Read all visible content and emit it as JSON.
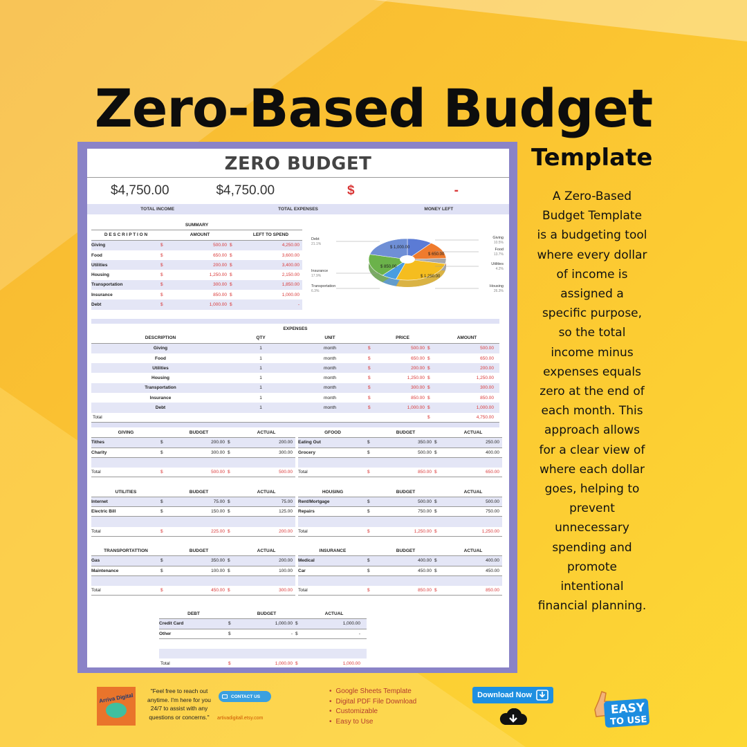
{
  "header": {
    "title": "Zero-Based Budget",
    "subtitle": "Template"
  },
  "description": "A Zero-Based Budget Template is a budgeting tool where every dollar of income is assigned a specific purpose, so the total income minus expenses equals zero at the end of each month. This approach allows for a clear view of where each dollar goes, helping to prevent unnecessary spending and promote intentional financial planning.",
  "sheet": {
    "title": "ZERO BUDGET",
    "total_income": "$4,750.00",
    "total_expenses": "$4,750.00",
    "money_left_symbol": "$",
    "money_left_value": "-",
    "label_income": "TOTAL INCOME",
    "label_expenses": "TOTAL EXPENSES",
    "label_money_left": "MONEY LEFT",
    "summary": {
      "title": "SUMMARY",
      "headers": [
        "D E S C R I P T I O N",
        "AMOUNT",
        "LEFT TO SPEND"
      ],
      "rows": [
        [
          "Giving",
          "500.00",
          "4,250.00"
        ],
        [
          "Food",
          "650.00",
          "3,600.00"
        ],
        [
          "Utilities",
          "200.00",
          "3,400.00"
        ],
        [
          "Housing",
          "1,250.00",
          "2,150.00"
        ],
        [
          "Transportation",
          "300.00",
          "1,850.00"
        ],
        [
          "Insurance",
          "850.00",
          "1,000.00"
        ],
        [
          "Debt",
          "1,000.00",
          "-"
        ]
      ]
    },
    "pie": {
      "slices": [
        {
          "label": "Giving",
          "pct": "10.5%",
          "value": 500,
          "color": "#5b7bd5"
        },
        {
          "label": "Food",
          "pct": "13.7%",
          "value": 650,
          "color": "#ef7b2d"
        },
        {
          "label": "Utilities",
          "pct": "4.2%",
          "value": 200,
          "color": "#a9a9a9"
        },
        {
          "label": "Housing",
          "pct": "26.3%",
          "value": 1250,
          "color": "#f5bd1f"
        },
        {
          "label": "Transportation",
          "pct": "6.3%",
          "value": 300,
          "color": "#4a9de0"
        },
        {
          "label": "Insurance",
          "pct": "17.9%",
          "value": 850,
          "color": "#6bb24a"
        },
        {
          "label": "Debt",
          "pct": "21.1%",
          "value": 1000,
          "color": "#6f8fd6"
        }
      ],
      "inner_labels": [
        "$ 1,000.00",
        "$ 650.00",
        "$ 850.00",
        "$ 1,250.00"
      ]
    },
    "expenses": {
      "title": "EXPENSES",
      "headers": [
        "DESCRIPTION",
        "QTY",
        "UNIT",
        "PRICE",
        "AMOUNT"
      ],
      "rows": [
        [
          "Giving",
          "1",
          "month",
          "500.00",
          "500.00"
        ],
        [
          "Food",
          "1",
          "month",
          "650.00",
          "650.00"
        ],
        [
          "Utilities",
          "1",
          "month",
          "200.00",
          "200.00"
        ],
        [
          "Housing",
          "1",
          "month",
          "1,250.00",
          "1,250.00"
        ],
        [
          "Transportation",
          "1",
          "month",
          "300.00",
          "300.00"
        ],
        [
          "Insurance",
          "1",
          "month",
          "850.00",
          "850.00"
        ],
        [
          "Debt",
          "1",
          "month",
          "1,000.00",
          "1,000.00"
        ]
      ],
      "total_label": "Total",
      "total_value": "4,750.00"
    },
    "subtables": [
      {
        "name": "GIVING",
        "rows": [
          [
            "Tithes",
            "200.00",
            "200.00"
          ],
          [
            "Charity",
            "300.00",
            "300.00"
          ]
        ],
        "total": [
          "500.00",
          "500.00"
        ]
      },
      {
        "name": "GFOOD",
        "rows": [
          [
            "Eating Out",
            "350.00",
            "250.00"
          ],
          [
            "Grocery",
            "500.00",
            "400.00"
          ]
        ],
        "total": [
          "850.00",
          "650.00"
        ]
      },
      {
        "name": "UTILITIES",
        "rows": [
          [
            "Internet",
            "75.00",
            "75.00"
          ],
          [
            "Electric Bill",
            "150.00",
            "125.00"
          ]
        ],
        "total": [
          "225.00",
          "200.00"
        ]
      },
      {
        "name": "HOUSING",
        "rows": [
          [
            "Rent/Mortgage",
            "500.00",
            "500.00"
          ],
          [
            "Repairs",
            "750.00",
            "750.00"
          ]
        ],
        "total": [
          "1,250.00",
          "1,250.00"
        ]
      },
      {
        "name": "TRANSPORTATTION",
        "rows": [
          [
            "Gas",
            "350.00",
            "200.00"
          ],
          [
            "Maintenance",
            "100.00",
            "100.00"
          ]
        ],
        "total": [
          "450.00",
          "300.00"
        ]
      },
      {
        "name": "INSURANCE",
        "rows": [
          [
            "Medical",
            "400.00",
            "400.00"
          ],
          [
            "Car",
            "450.00",
            "450.00"
          ]
        ],
        "total": [
          "850.00",
          "850.00"
        ]
      }
    ],
    "debt": {
      "name": "DEBT",
      "rows": [
        [
          "Credit Card",
          "1,000.00",
          "1,000.00"
        ],
        [
          "Other",
          "-",
          "-"
        ]
      ],
      "total": [
        "1,000.00",
        "1,000.00"
      ]
    },
    "col_budget": "BUDGET",
    "col_actual": "ACTUAL",
    "total_label": "Total",
    "dollar": "$"
  },
  "footer": {
    "logo_text": "Arriva Digital",
    "quote": "\"Feel free to reach out anytime. I'm here for you 24/7 to assist with any questions or concerns.\"",
    "contact": "CONTACT US",
    "shop": "artivadigitall.etsy.com",
    "features": [
      "Google Sheets Template",
      "Digital PDF File Download",
      "Customizable",
      "Easy to Use"
    ],
    "download": "Download Now",
    "easy_line1": "EASY",
    "easy_line2": "TO USE"
  }
}
